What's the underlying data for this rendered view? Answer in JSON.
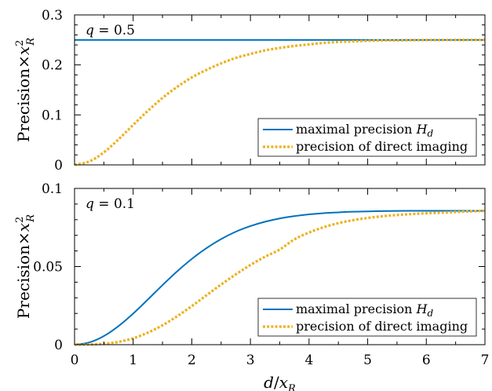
{
  "chart_data": [
    {
      "type": "line",
      "annotation": "q = 0.5",
      "ylabel": "Precision×x_R^2",
      "xlabel": "",
      "xlim": [
        0,
        7
      ],
      "ylim": [
        0,
        0.3
      ],
      "xticks": [
        0,
        1,
        2,
        3,
        4,
        5,
        6,
        7
      ],
      "yticks": [
        0,
        0.1,
        0.2,
        0.3
      ],
      "ytick_labels": [
        "0",
        "0.1",
        "0.2",
        "0.3"
      ],
      "show_xtick_labels": false,
      "grid": false,
      "legend_position": "bottom-right",
      "x": [
        0,
        0.25,
        0.5,
        0.75,
        1,
        1.25,
        1.5,
        1.75,
        2,
        2.25,
        2.5,
        2.75,
        3,
        3.25,
        3.5,
        3.75,
        4,
        4.25,
        4.5,
        4.75,
        5,
        5.25,
        5.5,
        5.75,
        6,
        6.25,
        6.5,
        6.75,
        7
      ],
      "series": [
        {
          "name": "maximal precision H_d",
          "color": "#0072BD",
          "style": "solid",
          "values": [
            0.25,
            0.25,
            0.25,
            0.25,
            0.25,
            0.25,
            0.25,
            0.25,
            0.25,
            0.25,
            0.25,
            0.25,
            0.25,
            0.25,
            0.25,
            0.25,
            0.25,
            0.25,
            0.25,
            0.25,
            0.25,
            0.25,
            0.25,
            0.25,
            0.25,
            0.25,
            0.25,
            0.25,
            0.25
          ]
        },
        {
          "name": "precision of direct imaging",
          "color": "#EDB120",
          "style": "dotted",
          "values": [
            0,
            0.0068,
            0.025,
            0.051,
            0.08,
            0.108,
            0.134,
            0.156,
            0.175,
            0.19,
            0.203,
            0.214,
            0.222,
            0.229,
            0.234,
            0.238,
            0.241,
            0.244,
            0.246,
            0.247,
            0.248,
            0.249,
            0.249,
            0.2495,
            0.2497,
            0.2498,
            0.2499,
            0.25,
            0.25
          ]
        }
      ]
    },
    {
      "type": "line",
      "annotation": "q = 0.1",
      "ylabel": "Precision×x_R^2",
      "xlabel": "d/x_R",
      "xlim": [
        0,
        7
      ],
      "ylim": [
        0,
        0.1
      ],
      "xticks": [
        0,
        1,
        2,
        3,
        4,
        5,
        6,
        7
      ],
      "xtick_labels": [
        "0",
        "1",
        "2",
        "3",
        "4",
        "5",
        "6",
        "7"
      ],
      "yticks": [
        0,
        0.05,
        0.1
      ],
      "ytick_labels": [
        "0",
        "0.05",
        "0.1"
      ],
      "show_xtick_labels": true,
      "grid": false,
      "legend_position": "bottom-right",
      "x": [
        0,
        0.25,
        0.5,
        0.75,
        1,
        1.25,
        1.5,
        1.75,
        2,
        2.25,
        2.5,
        2.75,
        3,
        3.25,
        3.5,
        3.75,
        4,
        4.25,
        4.5,
        4.75,
        5,
        5.25,
        5.5,
        5.75,
        6,
        6.25,
        6.5,
        6.75,
        7
      ],
      "series": [
        {
          "name": "maximal precision H_d",
          "color": "#0072BD",
          "style": "solid",
          "values": [
            0,
            0.0014,
            0.0055,
            0.0119,
            0.0199,
            0.0289,
            0.0381,
            0.0469,
            0.0549,
            0.0618,
            0.0676,
            0.0723,
            0.0759,
            0.0787,
            0.0808,
            0.0823,
            0.0834,
            0.0842,
            0.0847,
            0.0851,
            0.0853,
            0.0855,
            0.0856,
            0.0857,
            0.0857,
            0.0857,
            0.0857,
            0.0857,
            0.0857
          ]
        },
        {
          "name": "precision of direct imaging",
          "color": "#EDB120",
          "style": "dotted",
          "values": [
            0,
            0.0001,
            0.0006,
            0.0018,
            0.0041,
            0.0077,
            0.0124,
            0.0182,
            0.0247,
            0.0316,
            0.0385,
            0.045,
            0.051,
            0.0563,
            0.0609,
            0.0674,
            0.0718,
            0.0752,
            0.0778,
            0.0797,
            0.0811,
            0.0822,
            0.083,
            0.0836,
            0.0841,
            0.0845,
            0.0849,
            0.0853,
            0.0857
          ]
        }
      ]
    }
  ]
}
